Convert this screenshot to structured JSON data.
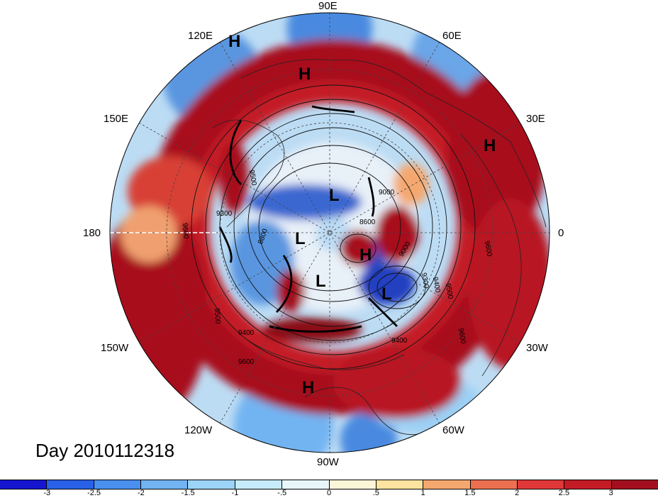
{
  "title": "Day 2010112318",
  "longitude_labels": {
    "n": "90E",
    "nw": "120E",
    "ne": "60E",
    "wnw": "150E",
    "ene": "30E",
    "w": "180",
    "e": "0",
    "wsw": "150W",
    "ese": "30W",
    "sw": "120W",
    "se": "60W",
    "s": "90W"
  },
  "pressure_centers": [
    "H",
    "H",
    "H",
    "L",
    "L",
    "L",
    "H",
    "L",
    "H"
  ],
  "contour_labels": [
    "9600",
    "9500",
    "9300",
    "9400",
    "9500",
    "9600",
    "9000",
    "8600",
    "9000",
    "9400",
    "9500",
    "9300",
    "9400",
    "9600",
    "9600",
    "8800"
  ],
  "colorbar": {
    "colors": [
      "#1515d0",
      "#2860e8",
      "#4a90ee",
      "#72b4f2",
      "#9cd4f8",
      "#c6ecfc",
      "#e8f6fc",
      "#fcf6d8",
      "#fce4a0",
      "#f4a870",
      "#ec7050",
      "#e03838",
      "#c41c26",
      "#a30f1e"
    ],
    "tick_labels": [
      "-3",
      "-2.5",
      "-2",
      "-1.5",
      "-1",
      "-.5",
      "0",
      ".5",
      "1",
      "1.5",
      "2",
      "2.5",
      "3"
    ]
  },
  "field_colors": {
    "deep_red": "#a8101c",
    "red": "#c41c26",
    "salmon": "#f0a070",
    "pale": "#f6e8d8",
    "light_blue": "#bcdcf4",
    "blue": "#5a96e0",
    "dark_blue": "#2040c0"
  }
}
